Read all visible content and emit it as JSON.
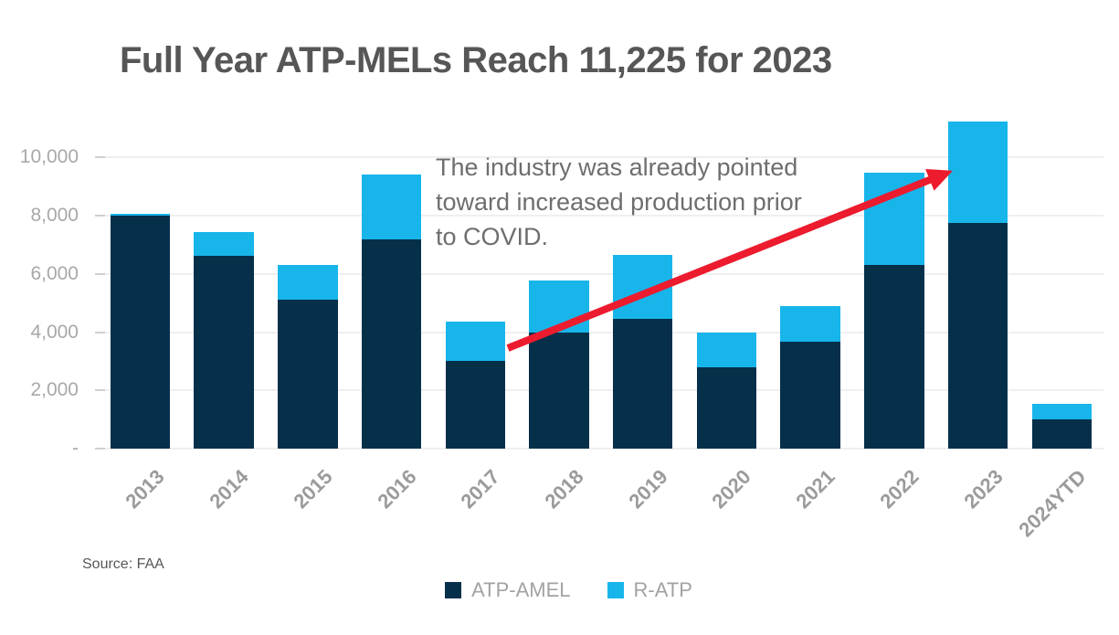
{
  "source": {
    "label": "Source: FAA"
  },
  "chart_data": {
    "type": "bar",
    "stacked": true,
    "title": "Full Year ATP-MELs Reach 11,225 for 2023",
    "categories": [
      "2013",
      "2014",
      "2015",
      "2016",
      "2017",
      "2018",
      "2019",
      "2020",
      "2021",
      "2022",
      "2023",
      "2024YTD"
    ],
    "series": [
      {
        "name": "ATP-AMEL",
        "color": "#06304a",
        "values": [
          8000,
          6625,
          5125,
          7200,
          3000,
          4000,
          4450,
          2800,
          3675,
          6300,
          7750,
          1000
        ]
      },
      {
        "name": "R-ATP",
        "color": "#18b5ea",
        "values": [
          60,
          825,
          1200,
          2200,
          1375,
          1775,
          2200,
          1175,
          1225,
          3175,
          3475,
          550
        ]
      }
    ],
    "stack_totals": [
      8060,
      7450,
      6325,
      9400,
      4375,
      5775,
      6650,
      3975,
      4900,
      9475,
      11225,
      1550
    ],
    "xlabel": "",
    "ylabel": "",
    "ylim": [
      0,
      11500
    ],
    "yticks": [
      0,
      2000,
      4000,
      6000,
      8000,
      10000
    ],
    "ytick_labels": [
      "-",
      "2,000",
      "4,000",
      "6,000",
      "8,000",
      "10,000"
    ],
    "grid": "horizontal",
    "grid_color": "#efefef",
    "background": "#ffffff",
    "legend_position": "bottom-center",
    "annotation": {
      "text": "The industry was already pointed\ntoward increased production prior\nto COVID.",
      "text_color": "#6e6e6e",
      "arrow_color": "#ec1b2e",
      "arrow_from_category": "2017",
      "arrow_to_category": "2023"
    }
  }
}
